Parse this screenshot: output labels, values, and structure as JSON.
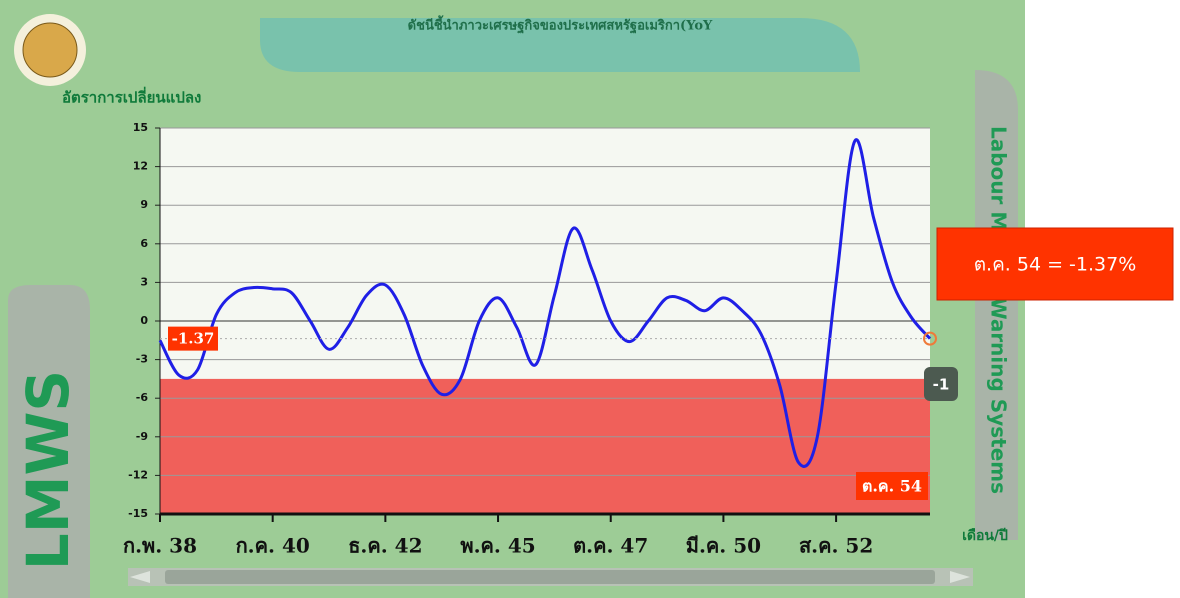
{
  "chart_data": {
    "type": "line",
    "title": "ดัชนีชี้นำภาวะเศรษฐกิจของประเทศสหรัฐอเมริกา(YoY",
    "y_label": "อัตราการเปลี่ยนแปลง",
    "x_label": "เดือน/ปี",
    "left_brand": "LMWS",
    "right_brand": "Labour Market Warning Systems",
    "tooltip": "ต.ค. 54 = -1.37%",
    "right_marker": "-1",
    "categories": [
      "ก.พ. 38",
      null,
      null,
      null,
      null,
      null,
      "ก.ค. 40",
      null,
      null,
      null,
      null,
      null,
      "ธ.ค. 42",
      null,
      null,
      null,
      null,
      null,
      "พ.ค. 45",
      null,
      null,
      null,
      null,
      null,
      "ต.ค. 47",
      null,
      null,
      null,
      null,
      null,
      "มี.ค. 50",
      null,
      null,
      null,
      null,
      null,
      "ส.ค. 52",
      null,
      null,
      null,
      null,
      "ต.ค. 54"
    ],
    "series": [
      {
        "name": "YoY",
        "color": "#1f1fe6",
        "values": [
          -1.5,
          -4.2,
          -3.8,
          0.5,
          2.2,
          2.6,
          2.5,
          2.2,
          0,
          -2.2,
          -0.5,
          2.0,
          2.8,
          0.5,
          -3.5,
          -5.7,
          -4.5,
          0,
          1.8,
          -0.5,
          -3.4,
          2,
          7.2,
          4,
          0,
          -1.6,
          0,
          1.8,
          1.6,
          0.8,
          1.8,
          0.8,
          -1.0,
          -5,
          -11,
          -9,
          3,
          14,
          8,
          3,
          0.3,
          -1.37
        ]
      }
    ],
    "band": {
      "from": -15,
      "to": -4.5,
      "color": "#f0605a"
    },
    "ylim": [
      -15,
      15
    ],
    "yticks": [
      -15,
      -12,
      -9,
      -6,
      -3,
      0,
      3,
      6,
      9,
      12,
      15
    ],
    "grid": true
  }
}
